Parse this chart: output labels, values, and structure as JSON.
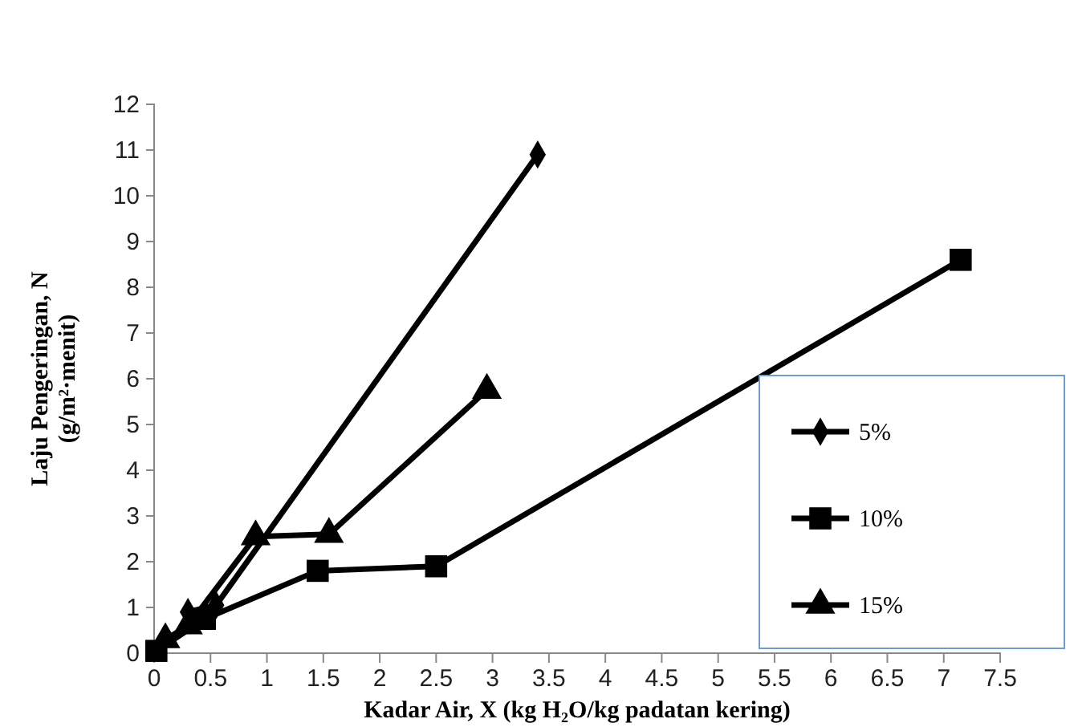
{
  "chart_data": {
    "type": "line",
    "xlabel": "Kadar Air, X (kg H₂O/kg padatan kering)",
    "ylabel": "Laju Pengeringan, N\n(g/m²·menit)",
    "xlim": [
      0,
      7.5
    ],
    "xticks": [
      0,
      0.5,
      1,
      1.5,
      2,
      2.5,
      3,
      3.5,
      4,
      4.5,
      5,
      5.5,
      6,
      6.5,
      7,
      7.5
    ],
    "ylim": [
      0,
      12
    ],
    "yticks": [
      0,
      1,
      2,
      3,
      4,
      5,
      6,
      7,
      8,
      9,
      10,
      11,
      12
    ],
    "grid": false,
    "legend": "bottom right",
    "series": [
      {
        "name": "5%",
        "color": "#000000",
        "marker": "diamond",
        "x": [
          0.3,
          0.55,
          3.4
        ],
        "values": [
          0.9,
          1.05,
          10.9
        ]
      },
      {
        "name": "10%",
        "color": "#000000",
        "marker": "square",
        "x": [
          0.02,
          0.45,
          1.45,
          2.5,
          7.15
        ],
        "values": [
          0.05,
          0.75,
          1.8,
          1.9,
          8.6
        ]
      },
      {
        "name": "15%",
        "color": "#000000",
        "marker": "triangle",
        "x": [
          0.1,
          0.3,
          0.9,
          1.55,
          2.95
        ],
        "values": [
          0.3,
          0.6,
          2.55,
          2.6,
          5.75
        ]
      }
    ]
  }
}
